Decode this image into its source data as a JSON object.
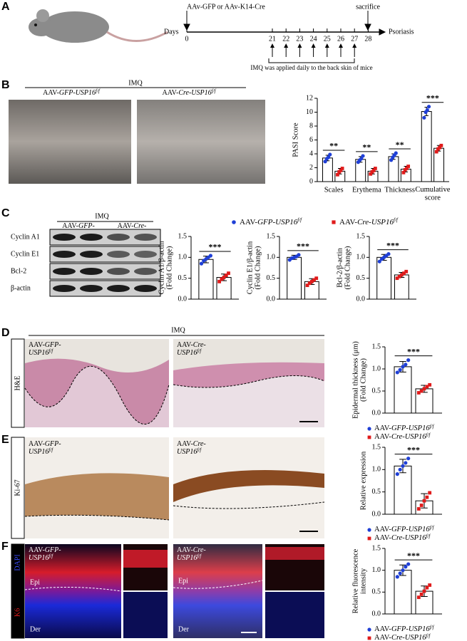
{
  "panels": {
    "a": "A",
    "b": "B",
    "c": "C",
    "d": "D",
    "e": "E",
    "f": "F"
  },
  "timeline": {
    "injection": "AAv-GFP or AAv-K14-Cre",
    "days_label": "Days",
    "days": [
      0,
      21,
      22,
      23,
      24,
      25,
      26,
      27,
      28
    ],
    "sacrifice": "sacrifice",
    "endpoint": "Psoriasis",
    "note": "IMQ was applied daily to the back skin of mice"
  },
  "panel_b": {
    "treatment": "IMQ",
    "groups": [
      "AAV-GFP-USP16f/f",
      "AAV-Cre-USP16f/f"
    ]
  },
  "panel_c": {
    "treatment": "IMQ",
    "groups": [
      "AAV-GFP-USP16f/f",
      "AAV-Cre-USP16f/f"
    ],
    "blots": [
      "Cyclin A1",
      "Cyclin E1",
      "Bcl-2",
      "β-actin"
    ]
  },
  "panel_d": {
    "treatment": "IMQ",
    "stain": "H&E",
    "groups": [
      "AAV-GFP-USP16f/f",
      "AAV-Cre-USP16f/f"
    ]
  },
  "panel_e": {
    "stain": "Ki-67",
    "groups": [
      "AAV-GFP-USP16f/f",
      "AAV-Cre-USP16f/f"
    ]
  },
  "panel_f": {
    "stains": [
      "DAPI",
      "K6"
    ],
    "layers": [
      "Epi",
      "Der"
    ],
    "groups": [
      "AAV-GFP-USP16f/f",
      "AAV-Cre-USP16f/f"
    ]
  },
  "chart_data": [
    {
      "type": "bar",
      "ylabel": [
        "PASI Score"
      ],
      "categories": [
        "Scales",
        "Erythema",
        "Thickness",
        "Cumulative score"
      ],
      "series": [
        {
          "color": "#1f3fd6",
          "values": [
            3.4,
            3.2,
            3.6,
            10.1
          ],
          "errors": [
            0.4,
            0.4,
            0.4,
            0.6
          ],
          "points": [
            [
              2.9,
              3.3,
              3.5,
              3.9
            ],
            [
              2.8,
              3.1,
              3.3,
              3.7
            ],
            [
              3.1,
              3.5,
              3.8,
              4.1
            ],
            [
              9.2,
              10.0,
              10.3,
              10.8
            ]
          ]
        },
        {
          "color": "#e01b1b",
          "values": [
            1.5,
            1.5,
            1.8,
            4.8
          ],
          "errors": [
            0.4,
            0.4,
            0.4,
            0.4
          ],
          "points": [
            [
              1.0,
              1.4,
              1.6,
              1.9
            ],
            [
              1.1,
              1.4,
              1.6,
              1.9
            ],
            [
              1.3,
              1.7,
              1.9,
              2.2
            ],
            [
              4.3,
              4.7,
              4.9,
              5.2
            ]
          ]
        }
      ],
      "significance": [
        "**",
        "**",
        "**",
        "***"
      ],
      "ylim": [
        0,
        12
      ],
      "yticks": [
        0,
        2,
        4,
        6,
        8,
        10,
        12
      ],
      "bar_color": "#ffffff"
    },
    {
      "type": "bar",
      "ylabel": [
        "Cyclin A1/β-actin",
        "(Fold Change)"
      ],
      "categories": [
        null
      ],
      "legend": "top",
      "series": [
        {
          "name": "AAV-GFP-USP16f/f",
          "color": "#1f3fd6",
          "values": [
            0.95
          ],
          "errors": [
            0.08
          ],
          "points": [
            [
              0.85,
              0.92,
              0.96,
              1.0,
              1.04
            ]
          ]
        },
        {
          "name": "AAV-Cre-USP16f/f",
          "color": "#e01b1b",
          "values": [
            0.52
          ],
          "errors": [
            0.08
          ],
          "points": [
            [
              0.42,
              0.48,
              0.52,
              0.57,
              0.62
            ]
          ]
        }
      ],
      "significance": [
        "***"
      ],
      "ylim": [
        0,
        1.5
      ],
      "yticks": [
        {
          "value": 0,
          "label": "0.0"
        },
        {
          "value": 0.5,
          "label": "0.5"
        },
        {
          "value": 1,
          "label": "1.0"
        },
        {
          "value": 1.5,
          "label": "1.5"
        }
      ],
      "bar_color": "#ffffff"
    },
    {
      "type": "bar",
      "ylabel": [
        "Cyclin E1/β-actin",
        "(Fold Change)"
      ],
      "categories": [
        null
      ],
      "series": [
        {
          "color": "#1f3fd6",
          "values": [
            1.0
          ],
          "errors": [
            0.05
          ],
          "points": [
            [
              0.94,
              0.98,
              1.0,
              1.02,
              1.06
            ]
          ]
        },
        {
          "color": "#e01b1b",
          "values": [
            0.42
          ],
          "errors": [
            0.07
          ],
          "points": [
            [
              0.33,
              0.38,
              0.42,
              0.46,
              0.5
            ]
          ]
        }
      ],
      "significance": [
        "***"
      ],
      "ylim": [
        0,
        1.5
      ],
      "yticks": [
        {
          "value": 0,
          "label": "0.0"
        },
        {
          "value": 0.5,
          "label": "0.5"
        },
        {
          "value": 1,
          "label": "1.0"
        },
        {
          "value": 1.5,
          "label": "1.5"
        }
      ],
      "bar_color": "#ffffff"
    },
    {
      "type": "bar",
      "ylabel": [
        "Bcl-2/β-actin",
        "(Fold Change)"
      ],
      "categories": [
        null
      ],
      "series": [
        {
          "color": "#1f3fd6",
          "values": [
            1.0
          ],
          "errors": [
            0.07
          ],
          "points": [
            [
              0.9,
              0.96,
              1.0,
              1.04,
              1.08
            ]
          ]
        },
        {
          "color": "#e01b1b",
          "values": [
            0.58
          ],
          "errors": [
            0.06
          ],
          "points": [
            [
              0.5,
              0.54,
              0.58,
              0.62,
              0.66
            ]
          ]
        }
      ],
      "significance": [
        "***"
      ],
      "ylim": [
        0,
        1.5
      ],
      "yticks": [
        {
          "value": 0,
          "label": "0.0"
        },
        {
          "value": 0.5,
          "label": "0.5"
        },
        {
          "value": 1,
          "label": "1.0"
        },
        {
          "value": 1.5,
          "label": "1.5"
        }
      ],
      "bar_color": "#ffffff"
    },
    {
      "type": "bar",
      "ylabel": [
        "Epidermal thickness (μm)",
        "(Fold Change)"
      ],
      "categories": [
        null
      ],
      "legend": "below",
      "series": [
        {
          "name": "AAV-GFP-USP16f/f",
          "color": "#1f3fd6",
          "values": [
            1.05
          ],
          "errors": [
            0.12
          ],
          "points": [
            [
              0.92,
              0.98,
              1.05,
              1.1,
              1.2
            ]
          ]
        },
        {
          "name": "AAV-Cre-USP16f/f",
          "color": "#e01b1b",
          "values": [
            0.55
          ],
          "errors": [
            0.08
          ],
          "points": [
            [
              0.46,
              0.5,
              0.55,
              0.6,
              0.64
            ]
          ]
        }
      ],
      "significance": [
        "***"
      ],
      "ylim": [
        0,
        1.5
      ],
      "yticks": [
        {
          "value": 0,
          "label": "0.0"
        },
        {
          "value": 0.5,
          "label": "0.5"
        },
        {
          "value": 1,
          "label": "1.0"
        },
        {
          "value": 1.5,
          "label": "1.5"
        }
      ],
      "bar_color": "#ffffff"
    },
    {
      "type": "bar",
      "ylabel": [
        "Relative expression"
      ],
      "categories": [
        null
      ],
      "legend": "below",
      "series": [
        {
          "name": "AAV-GFP-USP16f/f",
          "color": "#1f3fd6",
          "values": [
            1.08
          ],
          "errors": [
            0.15
          ],
          "points": [
            [
              0.9,
              1.0,
              1.08,
              1.15,
              1.25
            ]
          ]
        },
        {
          "name": "AAV-Cre-USP16f/f",
          "color": "#e01b1b",
          "values": [
            0.3
          ],
          "errors": [
            0.16
          ],
          "points": [
            [
              0.12,
              0.2,
              0.3,
              0.38,
              0.48
            ]
          ]
        }
      ],
      "significance": [
        "***"
      ],
      "ylim": [
        0,
        1.5
      ],
      "yticks": [
        {
          "value": 0,
          "label": "0.0"
        },
        {
          "value": 0.5,
          "label": "0.5"
        },
        {
          "value": 1,
          "label": "1.0"
        },
        {
          "value": 1.5,
          "label": "1.5"
        }
      ],
      "bar_color": "#ffffff"
    },
    {
      "type": "bar",
      "ylabel": [
        "Relative fluorescence",
        "intensity"
      ],
      "categories": [
        null
      ],
      "legend": "below",
      "series": [
        {
          "name": "AAV-GFP-USP16f/f",
          "color": "#1f3fd6",
          "values": [
            1.0
          ],
          "errors": [
            0.12
          ],
          "points": [
            [
              0.85,
              0.93,
              1.0,
              1.08,
              1.14
            ]
          ]
        },
        {
          "name": "AAV-Cre-USP16f/f",
          "color": "#e01b1b",
          "values": [
            0.52
          ],
          "errors": [
            0.12
          ],
          "points": [
            [
              0.38,
              0.45,
              0.52,
              0.6,
              0.66
            ]
          ]
        }
      ],
      "significance": [
        "***"
      ],
      "ylim": [
        0,
        1.5
      ],
      "yticks": [
        {
          "value": 0,
          "label": "0.0"
        },
        {
          "value": 0.5,
          "label": "0.5"
        },
        {
          "value": 1,
          "label": "1.0"
        },
        {
          "value": 1.5,
          "label": "1.5"
        }
      ],
      "bar_color": "#ffffff"
    }
  ]
}
